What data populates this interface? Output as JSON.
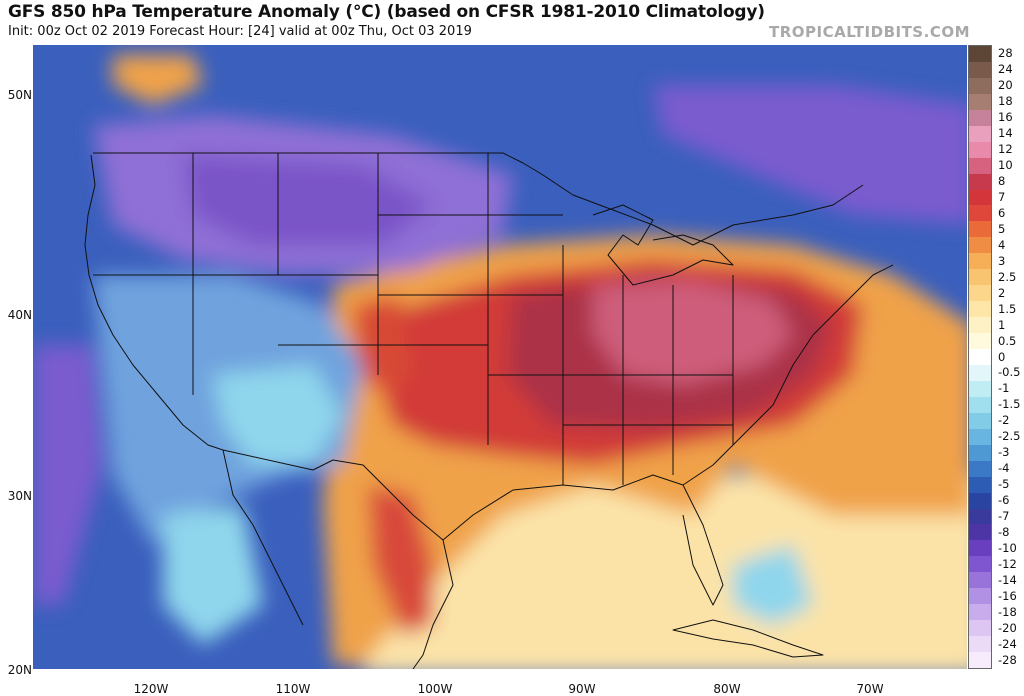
{
  "header": {
    "title": "GFS 850 hPa Temperature Anomaly (°C) (based on CFSR 1981-2010 Climatology)",
    "subtitle": "Init: 00z Oct 02 2019   Forecast Hour: [24]   valid at 00z Thu, Oct 03 2019",
    "brand": "TROPICALTIDBITS.COM"
  },
  "map": {
    "lat_labels": [
      "50N",
      "40N",
      "30N",
      "20N"
    ],
    "lon_labels": [
      "120W",
      "110W",
      "100W",
      "90W",
      "80W",
      "70W"
    ],
    "colors": {
      "deep_purple": "#7a55c8",
      "purple": "#8f6fd6",
      "dark_blue": "#2d4fb2",
      "blue": "#3f6cc4",
      "light_blue": "#6fa3de",
      "cyan": "#8fd6ec",
      "pale_yellow": "#fbe3a8",
      "orange": "#f0a24a",
      "orange_red": "#e06630",
      "red": "#c8333a",
      "dark_red": "#ab3347",
      "pink": "#cd5d7a",
      "state_line": "#111111"
    }
  },
  "colorbar": {
    "labels": [
      "28",
      "24",
      "20",
      "18",
      "16",
      "14",
      "12",
      "10",
      "8",
      "7",
      "6",
      "5",
      "4",
      "3",
      "2.5",
      "2",
      "1.5",
      "1",
      "0.5",
      "0",
      "-0.5",
      "-1",
      "-1.5",
      "-2",
      "-2.5",
      "-3",
      "-4",
      "-5",
      "-6",
      "-7",
      "-8",
      "-10",
      "-12",
      "-14",
      "-16",
      "-18",
      "-20",
      "-24",
      "-28"
    ],
    "colors": [
      "#5e4637",
      "#7a5a4a",
      "#8f6d5e",
      "#a77f72",
      "#c6829a",
      "#e8a0bd",
      "#e98aaa",
      "#d7627f",
      "#c7394c",
      "#d4353a",
      "#e0473b",
      "#ea6a3a",
      "#f08d44",
      "#f6ae57",
      "#f9c46f",
      "#fcd78b",
      "#fde6a8",
      "#fef1c5",
      "#fffadd",
      "#ffffff",
      "#e3f6fa",
      "#c0ecf4",
      "#9fdfee",
      "#82cce8",
      "#67b5e0",
      "#4e98d4",
      "#3b79c6",
      "#2d5cb5",
      "#2a45a1",
      "#393a9c",
      "#4d35a6",
      "#6a3fbf",
      "#7f56cf",
      "#9873d9",
      "#b091e3",
      "#c8aceb",
      "#ddc6f2",
      "#ecdbf7",
      "#f6ecfb"
    ]
  }
}
